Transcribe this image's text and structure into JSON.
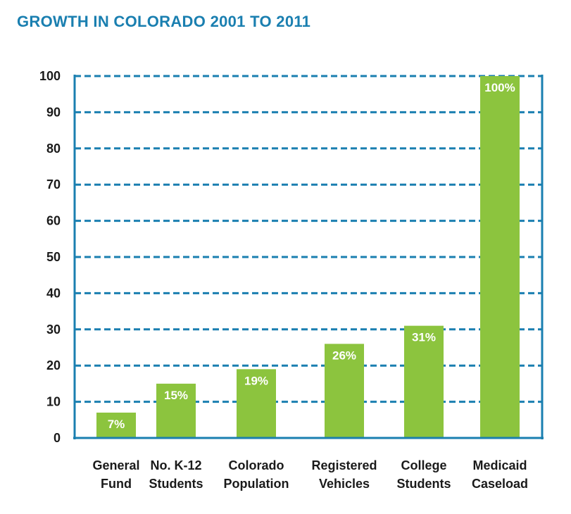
{
  "chart_data": {
    "type": "bar",
    "title": "GROWTH IN COLORADO 2001 TO 2011",
    "categories": [
      [
        "General",
        "Fund"
      ],
      [
        "No. K-12",
        "Students"
      ],
      [
        "Colorado",
        "Population"
      ],
      [
        "Registered",
        "Vehicles"
      ],
      [
        "College",
        "Students"
      ],
      [
        "Medicaid",
        "Caseload"
      ]
    ],
    "values": [
      7,
      15,
      19,
      26,
      31,
      100
    ],
    "value_labels": [
      "7%",
      "15%",
      "19%",
      "26%",
      "31%",
      "100%"
    ],
    "yticks": [
      0,
      10,
      20,
      30,
      40,
      50,
      60,
      70,
      80,
      90,
      100
    ],
    "ylim": [
      0,
      100
    ],
    "grid": true,
    "grid_style": "dashed",
    "xlabel": "",
    "ylabel": ""
  },
  "colors": {
    "title": "#1a7fb0",
    "axis": "#1a7fb0",
    "grid": "#1a7fb0",
    "bar": "#8cc43e",
    "bar_label": "#ffffff",
    "tick_text": "#1a1a1a"
  }
}
